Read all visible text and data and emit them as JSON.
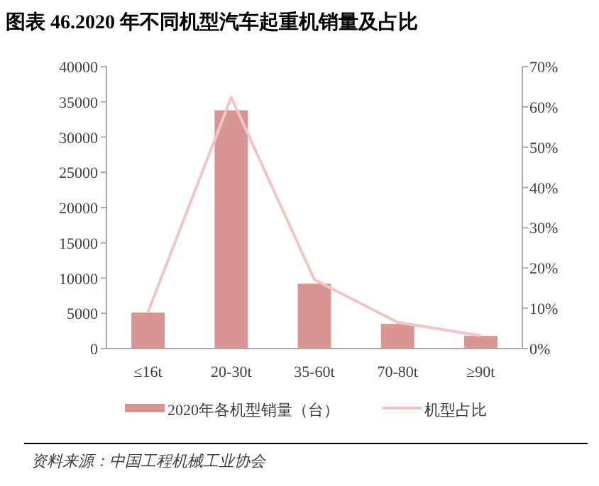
{
  "chart_data": {
    "type": "bar",
    "title": "图表 46.2020 年不同机型汽车起重机销量及占比",
    "categories": [
      "≤16t",
      "20-30t",
      "35-60t",
      "70-80t",
      "≥90t"
    ],
    "series": [
      {
        "name": "2020年各机型销量（台）",
        "color": "#d99594",
        "values": [
          5100,
          33800,
          9200,
          3500,
          1800
        ]
      },
      {
        "name": "机型占比",
        "type": "line",
        "axis": "y2",
        "color": "#f2c4c4",
        "values": [
          9.1,
          62.4,
          17.1,
          6.5,
          3.2
        ]
      }
    ],
    "ylim": [
      0,
      40000
    ],
    "yticks": [
      0,
      5000,
      10000,
      15000,
      20000,
      25000,
      30000,
      35000,
      40000
    ],
    "y2lim": [
      0,
      70
    ],
    "y2ticks": [
      {
        "value": 0,
        "label": "0%"
      },
      {
        "value": 10,
        "label": "10%"
      },
      {
        "value": 20,
        "label": "20%"
      },
      {
        "value": 30,
        "label": "30%"
      },
      {
        "value": 40,
        "label": "40%"
      },
      {
        "value": 50,
        "label": "50%"
      },
      {
        "value": 60,
        "label": "60%"
      },
      {
        "value": 70,
        "label": "70%"
      }
    ],
    "grid": false,
    "legend": "bottom",
    "annotations": [
      "资料来源：中国工程机械工业协会"
    ]
  }
}
